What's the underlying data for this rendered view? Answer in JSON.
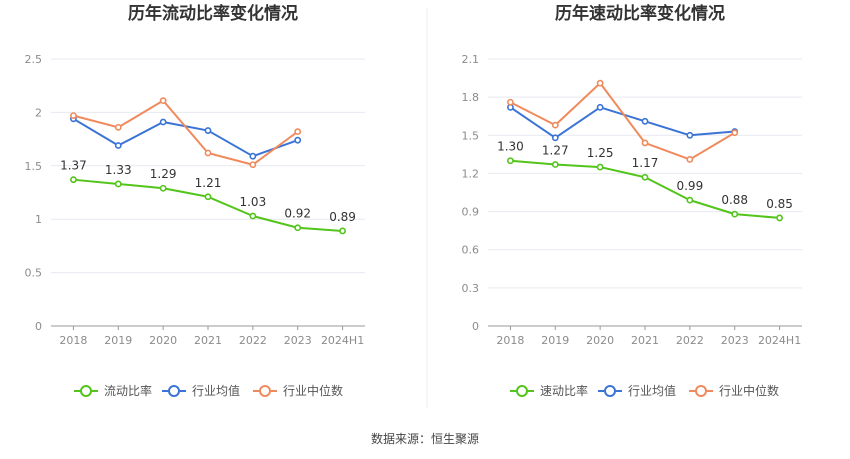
{
  "source": "数据来源：恒生聚源",
  "legend": [
    "流动比率",
    "行业均值",
    "行业中位数"
  ],
  "legend_right": [
    "速动比率",
    "行业均值",
    "行业中位数"
  ],
  "colors": {
    "main": "#52c41a",
    "avg": "#3b74d6",
    "median": "#f08a5d",
    "grid": "#e6e9f0"
  },
  "chart_data": [
    {
      "type": "line",
      "title": "历年流动比率变化情况",
      "categories": [
        "2018",
        "2019",
        "2020",
        "2021",
        "2022",
        "2023",
        "2024H1"
      ],
      "ylim": [
        0,
        2.5
      ],
      "yticks": [
        "0",
        "0.5",
        "1",
        "1.5",
        "2",
        "2.5"
      ],
      "grid": true,
      "legend_position": "bottom",
      "series": [
        {
          "name": "流动比率",
          "values": [
            1.37,
            1.33,
            1.29,
            1.21,
            1.03,
            0.92,
            0.89
          ],
          "labels": [
            "1.37",
            "1.33",
            "1.29",
            "1.21",
            "1.03",
            "0.92",
            "0.89"
          ]
        },
        {
          "name": "行业均值",
          "values": [
            1.94,
            1.69,
            1.91,
            1.83,
            1.59,
            1.74,
            null
          ]
        },
        {
          "name": "行业中位数",
          "values": [
            1.97,
            1.86,
            2.11,
            1.62,
            1.51,
            1.82,
            null
          ]
        }
      ]
    },
    {
      "type": "line",
      "title": "历年速动比率变化情况",
      "categories": [
        "2018",
        "2019",
        "2020",
        "2021",
        "2022",
        "2023",
        "2024H1"
      ],
      "ylim": [
        0,
        2.1
      ],
      "yticks": [
        "0",
        "0.3",
        "0.6",
        "0.9",
        "1.2",
        "1.5",
        "1.8",
        "2.1"
      ],
      "grid": true,
      "legend_position": "bottom",
      "series": [
        {
          "name": "速动比率",
          "values": [
            1.3,
            1.27,
            1.25,
            1.17,
            0.99,
            0.88,
            0.85
          ],
          "labels": [
            "1.30",
            "1.27",
            "1.25",
            "1.17",
            "0.99",
            "0.88",
            "0.85"
          ]
        },
        {
          "name": "行业均值",
          "values": [
            1.72,
            1.48,
            1.72,
            1.61,
            1.5,
            1.53,
            null
          ]
        },
        {
          "name": "行业中位数",
          "values": [
            1.76,
            1.58,
            1.91,
            1.44,
            1.31,
            1.52,
            null
          ]
        }
      ]
    }
  ]
}
